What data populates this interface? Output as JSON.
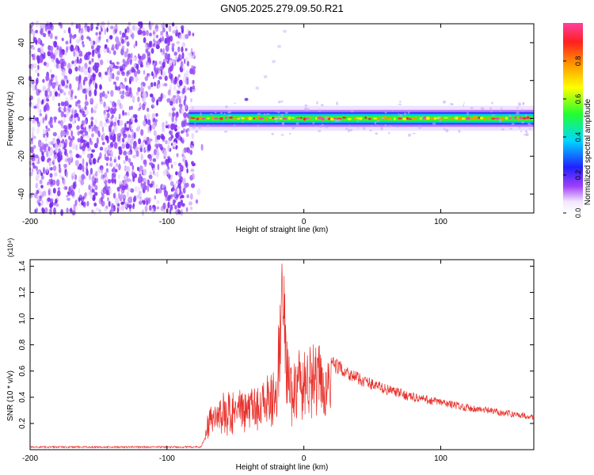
{
  "title": "GN05.2025.279.09.50.R21",
  "chart_data": [
    {
      "type": "heatmap",
      "xlabel": "Height of straight line (km)",
      "ylabel": "Frequency (Hz)",
      "xlim": [
        -200,
        168
      ],
      "ylim": [
        -50,
        50
      ],
      "xticks": [
        -200,
        -100,
        0,
        100
      ],
      "yticks": [
        -40,
        -20,
        0,
        20,
        40
      ],
      "colorbar": {
        "label": "Normalized spectral amplitude",
        "range": [
          0,
          1
        ],
        "ticks": [
          "0.0",
          "0.2",
          "0.4",
          "0.6",
          "0.8"
        ]
      },
      "noise_region_x": [
        -200,
        -80
      ],
      "signal_band": {
        "x_start": -84,
        "x_end": 168,
        "center_hz": 0,
        "half_width_hz": 3
      },
      "signal_arc": [
        [
          -42,
          10
        ],
        [
          -34,
          16
        ],
        [
          -28,
          22
        ],
        [
          -22,
          30
        ],
        [
          -18,
          38
        ],
        [
          -14,
          46
        ]
      ],
      "grid": false
    },
    {
      "type": "line",
      "xlabel": "Height of straight line (km)",
      "ylabel": "SNR (10 * v/v)",
      "y_multiplier": "(x10⁴)",
      "xlim": [
        -200,
        168
      ],
      "ylim": [
        0,
        1.45
      ],
      "xticks": [
        -200,
        -100,
        0,
        100
      ],
      "yticks": [
        "0.2",
        "0.4",
        "0.6",
        "0.8",
        "1.0",
        "1.2",
        "1.4"
      ],
      "series_color": "#e8302a",
      "envelope_points": [
        [
          -200,
          0.02
        ],
        [
          -150,
          0.02
        ],
        [
          -100,
          0.02
        ],
        [
          -75,
          0.02
        ],
        [
          -72,
          0.1
        ],
        [
          -70,
          0.3
        ],
        [
          -60,
          0.38
        ],
        [
          -50,
          0.4
        ],
        [
          -40,
          0.42
        ],
        [
          -30,
          0.48
        ],
        [
          -20,
          0.55
        ],
        [
          -16,
          1.42
        ],
        [
          -10,
          0.6
        ],
        [
          0,
          0.72
        ],
        [
          10,
          0.72
        ],
        [
          20,
          0.66
        ],
        [
          30,
          0.6
        ],
        [
          40,
          0.54
        ],
        [
          60,
          0.46
        ],
        [
          80,
          0.4
        ],
        [
          100,
          0.36
        ],
        [
          120,
          0.32
        ],
        [
          140,
          0.29
        ],
        [
          168,
          0.25
        ]
      ],
      "grid": false
    }
  ]
}
